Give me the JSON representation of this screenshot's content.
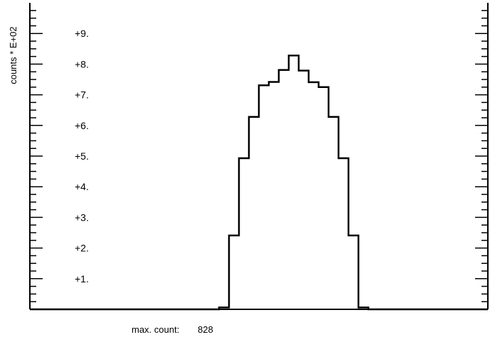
{
  "chart_data": {
    "type": "histogram",
    "ylabel": "counts * E+02",
    "y_scale_note": "values are counts; tick labels are in hundreds",
    "ylim": [
      0,
      1000
    ],
    "y_tick_labels": [
      "+1.",
      "+2.",
      "+3.",
      "+4.",
      "+5.",
      "+6.",
      "+7.",
      "+8.",
      "+9."
    ],
    "y_tick_values": [
      100,
      200,
      300,
      400,
      500,
      600,
      700,
      800,
      900
    ],
    "bins": 46,
    "values": [
      0,
      0,
      0,
      0,
      0,
      0,
      0,
      0,
      0,
      0,
      0,
      0,
      0,
      0,
      0,
      0,
      0,
      0,
      0,
      6,
      241,
      493,
      628,
      731,
      742,
      781,
      828,
      779,
      741,
      725,
      628,
      493,
      241,
      6,
      0,
      0,
      0,
      0,
      0,
      0,
      0,
      0,
      0,
      0,
      0,
      0
    ],
    "grid": false,
    "footer_label": "max. count:",
    "footer_value": "828"
  }
}
